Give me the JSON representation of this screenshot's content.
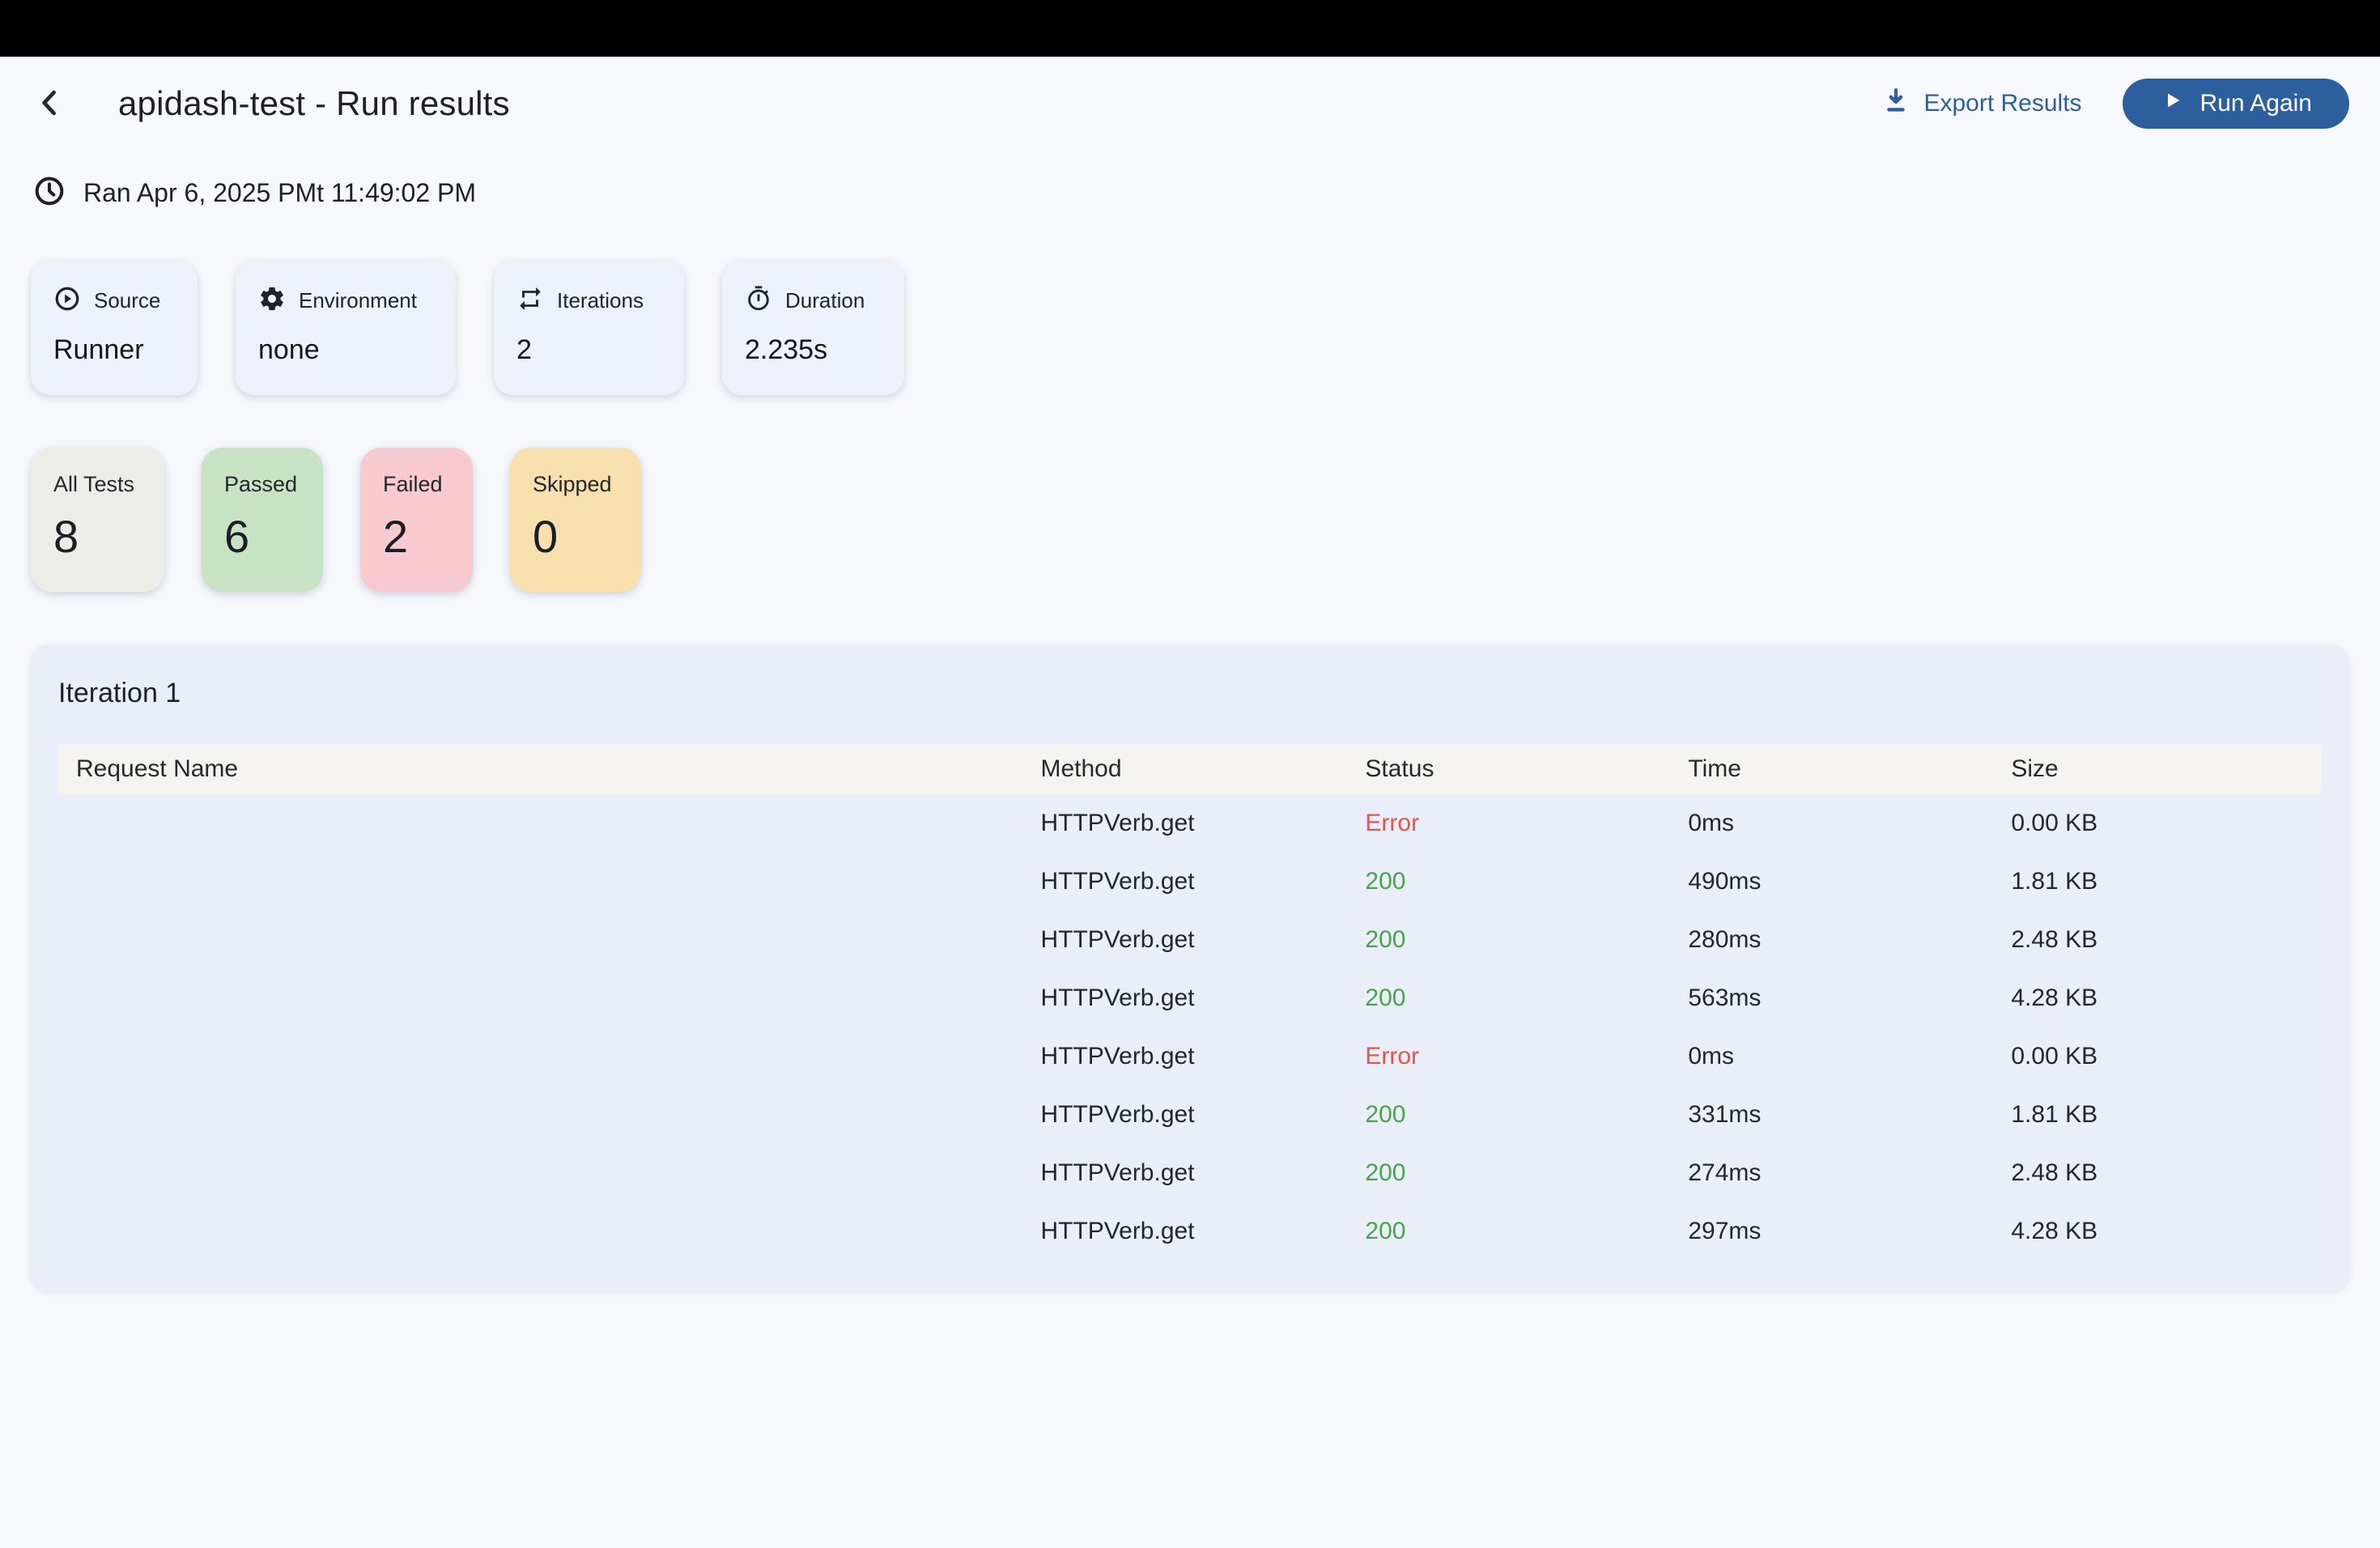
{
  "header": {
    "title": "apidash-test - Run results",
    "export_label": "Export Results",
    "run_again_label": "Run Again"
  },
  "run_meta": {
    "ran_text": "Ran Apr 6, 2025 PMt 11:49:02 PM"
  },
  "info_cards": [
    {
      "icon": "play-circle-icon",
      "label": "Source",
      "value": "Runner"
    },
    {
      "icon": "gear-icon",
      "label": "Environment",
      "value": "none"
    },
    {
      "icon": "repeat-icon",
      "label": "Iterations",
      "value": "2"
    },
    {
      "icon": "stopwatch-icon",
      "label": "Duration",
      "value": "2.235s"
    }
  ],
  "stat_cards": [
    {
      "label": "All Tests",
      "value": "8",
      "bg": "#ECECE9"
    },
    {
      "label": "Passed",
      "value": "6",
      "bg": "#C8E2C4"
    },
    {
      "label": "Failed",
      "value": "2",
      "bg": "#F6CACE"
    },
    {
      "label": "Skipped",
      "value": "0",
      "bg": "#F8E0AE"
    }
  ],
  "results": {
    "section_title": "Iteration 1",
    "columns": [
      "Request Name",
      "Method",
      "Status",
      "Time",
      "Size"
    ],
    "rows": [
      {
        "request_name": "",
        "method": "HTTPVerb.get",
        "status": "Error",
        "time": "0ms",
        "size": "0.00 KB"
      },
      {
        "request_name": "",
        "method": "HTTPVerb.get",
        "status": "200",
        "time": "490ms",
        "size": "1.81 KB"
      },
      {
        "request_name": "",
        "method": "HTTPVerb.get",
        "status": "200",
        "time": "280ms",
        "size": "2.48 KB"
      },
      {
        "request_name": "",
        "method": "HTTPVerb.get",
        "status": "200",
        "time": "563ms",
        "size": "4.28 KB"
      },
      {
        "request_name": "",
        "method": "HTTPVerb.get",
        "status": "Error",
        "time": "0ms",
        "size": "0.00 KB"
      },
      {
        "request_name": "",
        "method": "HTTPVerb.get",
        "status": "200",
        "time": "331ms",
        "size": "1.81 KB"
      },
      {
        "request_name": "",
        "method": "HTTPVerb.get",
        "status": "200",
        "time": "274ms",
        "size": "2.48 KB"
      },
      {
        "request_name": "",
        "method": "HTTPVerb.get",
        "status": "200",
        "time": "297ms",
        "size": "4.28 KB"
      }
    ]
  },
  "colors": {
    "accent_blue": "#2D5F9E",
    "status_error": "#E5544B",
    "status_ok": "#47A44B",
    "page_bg": "#F6F8FC",
    "topbar_bg": "#000000",
    "info_card_bg": "#EDF1FA",
    "table_card_bg": "#E9EEF9",
    "table_header_bg": "#F4F3EF"
  }
}
